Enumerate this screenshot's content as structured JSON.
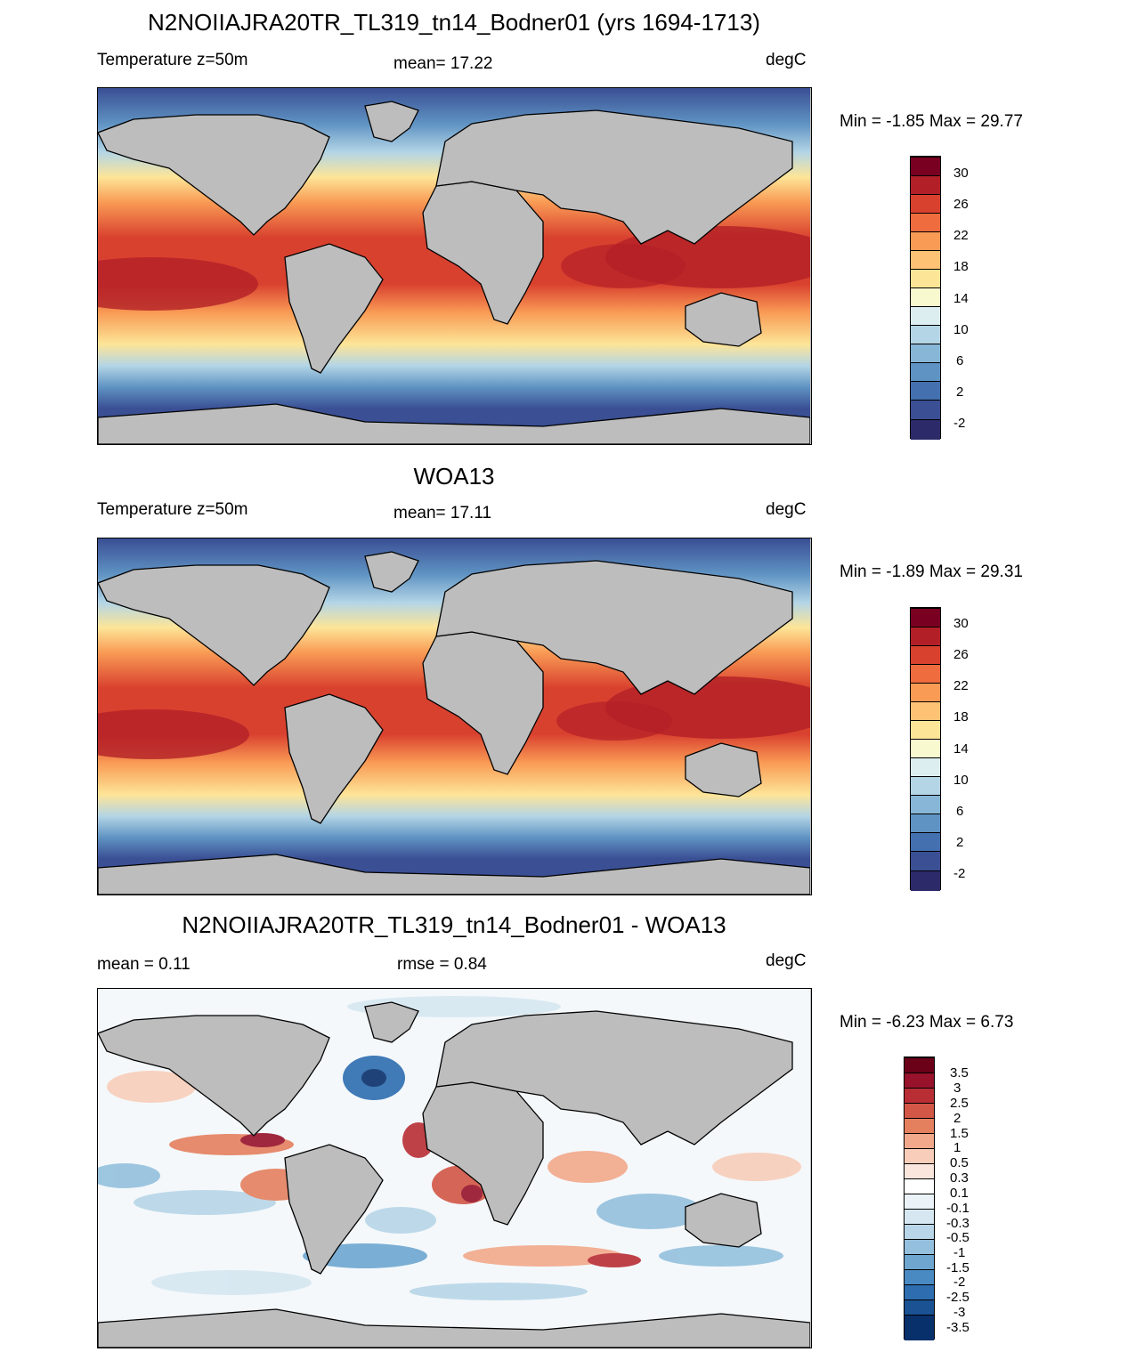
{
  "panels": [
    {
      "title": "N2NOIIAJRA20TR_TL319_tn14_Bodner01 (yrs 1694-1713)",
      "left_label": "Temperature z=50m",
      "center_label": "mean=  17.22",
      "right_label": "degC",
      "minmax": "Min =  -1.85 Max =  29.77",
      "colorbar_labels": [
        "30",
        "26",
        "22",
        "18",
        "14",
        "10",
        "6",
        "2",
        "-2"
      ],
      "colormap": "sequential-temperature"
    },
    {
      "title": "WOA13",
      "left_label": "Temperature z=50m",
      "center_label": "mean=  17.11",
      "right_label": "degC",
      "minmax": "Min =  -1.89 Max =  29.31",
      "colorbar_labels": [
        "30",
        "26",
        "22",
        "18",
        "14",
        "10",
        "6",
        "2",
        "-2"
      ],
      "colormap": "sequential-temperature"
    },
    {
      "title": "N2NOIIAJRA20TR_TL319_tn14_Bodner01 - WOA13",
      "left_label": "mean =   0.11",
      "center_label": "rmse =   0.84",
      "right_label": "degC",
      "minmax": "Min =  -6.23 Max =   6.73",
      "colorbar_labels": [
        "3.5",
        "3",
        "2.5",
        "2",
        "1.5",
        "1",
        "0.5",
        "0.3",
        "0.1",
        "-0.1",
        "-0.3",
        "-0.5",
        "-1",
        "-1.5",
        "-2",
        "-2.5",
        "-3",
        "-3.5"
      ],
      "colormap": "diverging-difference"
    }
  ],
  "colors": {
    "land": "#bdbdbd",
    "temperature_scale": [
      "#2c2a69",
      "#3a4f94",
      "#4470b0",
      "#5f93c3",
      "#87b6d6",
      "#b3d5e6",
      "#ddeef0",
      "#f8f9cf",
      "#fde598",
      "#fdc274",
      "#f99b55",
      "#ef6c3e",
      "#d9412f",
      "#b31f27",
      "#7a0022"
    ],
    "difference_scale": [
      "#08306b",
      "#1a5294",
      "#2d6db0",
      "#4a8ac2",
      "#6ea6d0",
      "#94c0dd",
      "#b8d6e8",
      "#d6e7f1",
      "#ecf3f8",
      "#ffffff",
      "#fbe6dd",
      "#f8cdb9",
      "#f2a98b",
      "#e5805f",
      "#d25746",
      "#b92e35",
      "#97122a",
      "#6b0019"
    ]
  }
}
